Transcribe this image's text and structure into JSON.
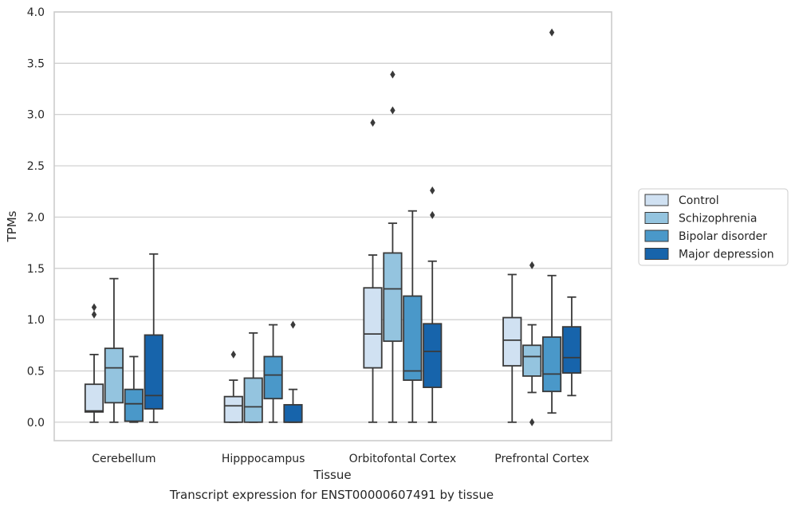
{
  "caption": "Transcript expression for ENST00000607491 by tissue",
  "chart_data": {
    "type": "box",
    "xlabel": "Tissue",
    "ylabel": "TPMs",
    "ylim": [
      -0.18,
      4.0
    ],
    "yticks": [
      "0.0",
      "0.5",
      "1.0",
      "1.5",
      "2.0",
      "2.5",
      "3.0",
      "3.5",
      "4.0"
    ],
    "grid": "horizontal",
    "legend_position": "right",
    "categories": [
      "Cerebellum",
      "Hipppocampus",
      "Orbitofontal Cortex",
      "Prefrontal Cortex"
    ],
    "series": [
      {
        "name": "Control",
        "color": "#d0e1f2",
        "boxes": [
          {
            "whisker_low": 0.0,
            "q1": 0.1,
            "median": 0.11,
            "q3": 0.37,
            "whisker_high": 0.66,
            "outliers": [
              1.05,
              1.12
            ]
          },
          {
            "whisker_low": 0.0,
            "q1": 0.0,
            "median": 0.16,
            "q3": 0.25,
            "whisker_high": 0.41,
            "outliers": [
              0.66
            ]
          },
          {
            "whisker_low": 0.0,
            "q1": 0.53,
            "median": 0.86,
            "q3": 1.31,
            "whisker_high": 1.63,
            "outliers": [
              2.92
            ]
          },
          {
            "whisker_low": 0.0,
            "q1": 0.55,
            "median": 0.8,
            "q3": 1.02,
            "whisker_high": 1.44,
            "outliers": []
          }
        ]
      },
      {
        "name": "Schizophrenia",
        "color": "#94c4df",
        "boxes": [
          {
            "whisker_low": 0.0,
            "q1": 0.19,
            "median": 0.53,
            "q3": 0.72,
            "whisker_high": 1.4,
            "outliers": []
          },
          {
            "whisker_low": 0.0,
            "q1": 0.0,
            "median": 0.15,
            "q3": 0.43,
            "whisker_high": 0.87,
            "outliers": []
          },
          {
            "whisker_low": 0.0,
            "q1": 0.79,
            "median": 1.3,
            "q3": 1.65,
            "whisker_high": 1.94,
            "outliers": [
              3.04,
              3.39
            ]
          },
          {
            "whisker_low": 0.29,
            "q1": 0.45,
            "median": 0.64,
            "q3": 0.75,
            "whisker_high": 0.95,
            "outliers": [
              1.53,
              0.0
            ]
          }
        ]
      },
      {
        "name": "Bipolar disorder",
        "color": "#4a98c9",
        "boxes": [
          {
            "whisker_low": 0.0,
            "q1": 0.01,
            "median": 0.18,
            "q3": 0.32,
            "whisker_high": 0.64,
            "outliers": []
          },
          {
            "whisker_low": 0.0,
            "q1": 0.23,
            "median": 0.46,
            "q3": 0.64,
            "whisker_high": 0.95,
            "outliers": []
          },
          {
            "whisker_low": 0.0,
            "q1": 0.41,
            "median": 0.5,
            "q3": 1.23,
            "whisker_high": 2.06,
            "outliers": []
          },
          {
            "whisker_low": 0.09,
            "q1": 0.3,
            "median": 0.47,
            "q3": 0.83,
            "whisker_high": 1.43,
            "outliers": [
              3.8
            ]
          }
        ]
      },
      {
        "name": "Major depression",
        "color": "#1764ab",
        "boxes": [
          {
            "whisker_low": 0.0,
            "q1": 0.13,
            "median": 0.26,
            "q3": 0.85,
            "whisker_high": 1.64,
            "outliers": []
          },
          {
            "whisker_low": 0.0,
            "q1": 0.0,
            "median": 0.0,
            "q3": 0.17,
            "whisker_high": 0.32,
            "outliers": [
              0.95
            ]
          },
          {
            "whisker_low": 0.0,
            "q1": 0.34,
            "median": 0.69,
            "q3": 0.96,
            "whisker_high": 1.57,
            "outliers": [
              2.02,
              2.26
            ]
          },
          {
            "whisker_low": 0.26,
            "q1": 0.48,
            "median": 0.63,
            "q3": 0.93,
            "whisker_high": 1.22,
            "outliers": []
          }
        ]
      }
    ]
  }
}
